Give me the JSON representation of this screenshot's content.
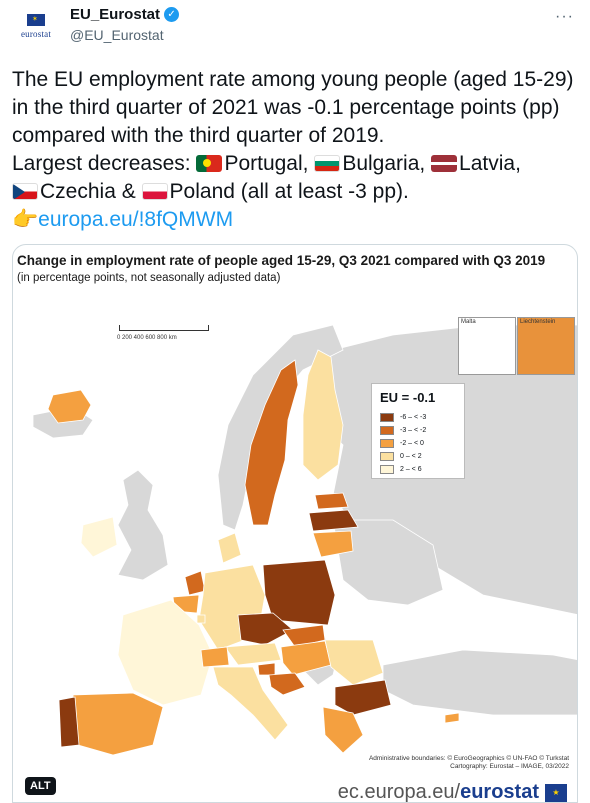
{
  "account": {
    "display_name": "EU_Eurostat",
    "handle": "@EU_Eurostat",
    "avatar_text": "eurostat"
  },
  "tweet": {
    "line1": "The EU employment rate among young people (aged 15-29) in the third quarter of 2021 was -0.1 percentage points (pp) compared with the third quarter of 2019.",
    "line2": "Largest decreases: ",
    "portugal": "Portugal, ",
    "bulgaria": "Bulgaria, ",
    "latvia": "Latvia,",
    "czechia": "Czechia & ",
    "poland": "Poland (all at least -3 pp).",
    "link": "europa.eu/!8fQMWM"
  },
  "map": {
    "title": "Change in employment rate of people aged 15-29, Q3 2021 compared with Q3 2019",
    "subtitle": "(in percentage points, not seasonally adjusted data)",
    "scale_labels": "0    200   400   600   800 km",
    "inset_malta": "Malta",
    "inset_liech": "Liechtenstein",
    "legend": {
      "title": "EU = -0.1",
      "items": [
        {
          "label": "-6 – < -3",
          "color": "#8b3a0f"
        },
        {
          "label": "-3 – < -2",
          "color": "#d2691e"
        },
        {
          "label": "-2 – < 0",
          "color": "#f4a040"
        },
        {
          "label": "0 – < 2",
          "color": "#fbe0a0"
        },
        {
          "label": "2 – < 6",
          "color": "#fff6d8"
        }
      ]
    },
    "credits1": "Administrative boundaries: © EuroGeographics © UN-FAO © Turkstat",
    "credits2": "Cartography: Eurostat – IMAGE, 03/2022",
    "alt_label": "ALT",
    "footer_text": "ec.europa.eu/",
    "footer_bold": "eurostat"
  },
  "colors": {
    "sea": "#ffffff",
    "non_eu": "#d8d8d8",
    "c_dark": "#8b3a0f",
    "c_mid": "#d2691e",
    "c_light": "#f4a040",
    "c_pale": "#fbe0a0",
    "c_cream": "#fff6d8"
  }
}
